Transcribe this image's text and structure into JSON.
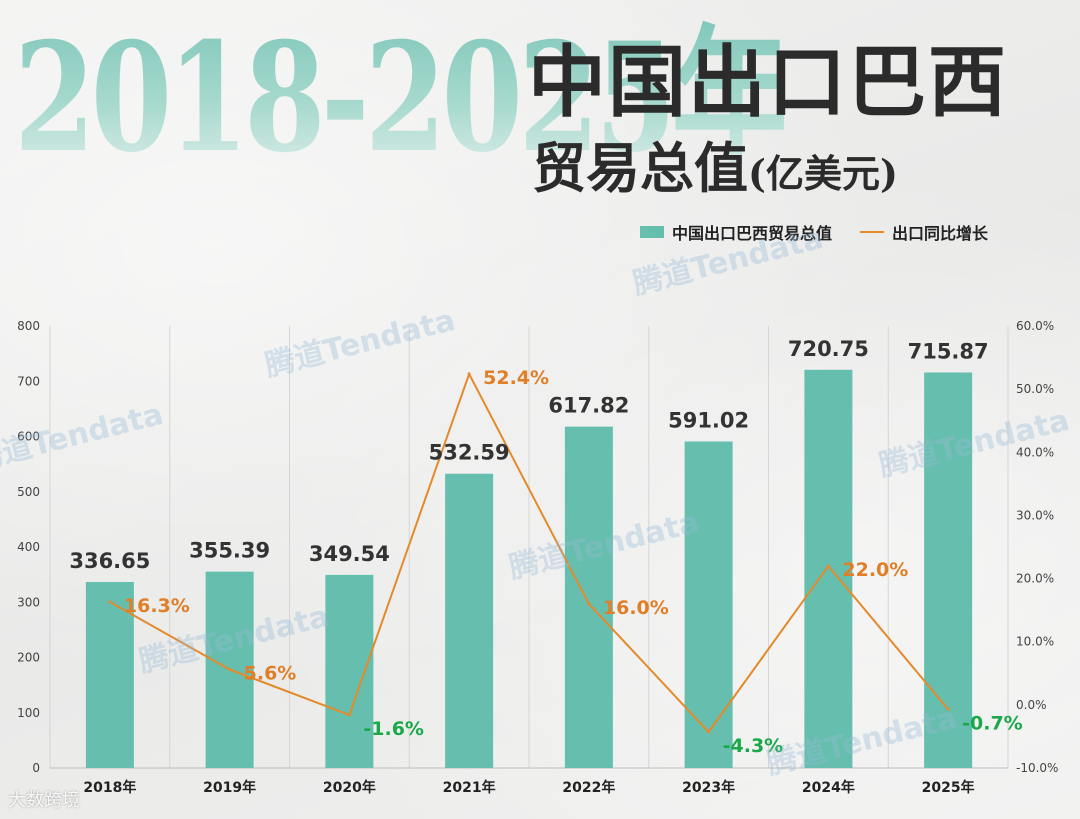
{
  "header": {
    "big_year": "2018-2025年",
    "title_line1": "中国出口巴西",
    "title_line2": "贸易总值",
    "title_unit": "(亿美元)"
  },
  "legend": {
    "bar_label": "中国出口巴西贸易总值",
    "line_label": "出口同比增长"
  },
  "watermark_text": "腾道Tendata",
  "source_label": "大数跨境",
  "colors": {
    "bar": "#66bfae",
    "line": "#e38a2b",
    "label_dark": "#333333",
    "label_pos": "#e07f27",
    "label_neg": "#1aa84a",
    "grid": "#d6d6d6"
  },
  "chart_data": {
    "type": "bar",
    "title": "2018-2025年中国出口巴西贸易总值(亿美元)",
    "categories": [
      "2018年",
      "2019年",
      "2020年",
      "2021年",
      "2022年",
      "2023年",
      "2024年",
      "2025年"
    ],
    "series": [
      {
        "name": "中国出口巴西贸易总值",
        "type": "bar",
        "axis": "left",
        "values": [
          336.65,
          355.39,
          349.54,
          532.59,
          617.82,
          591.02,
          720.75,
          715.87
        ],
        "labels": [
          "336.65",
          "355.39",
          "349.54",
          "532.59",
          "617.82",
          "591.02",
          "720.75",
          "715.87"
        ]
      },
      {
        "name": "出口同比增长",
        "type": "line",
        "axis": "right",
        "values": [
          16.3,
          5.6,
          -1.6,
          52.4,
          16.0,
          -4.3,
          22.0,
          -0.7
        ],
        "labels": [
          "16.3%",
          "5.6%",
          "-1.6%",
          "52.4%",
          "16.0%",
          "-4.3%",
          "22.0%",
          "-0.7%"
        ]
      }
    ],
    "left_axis": {
      "ylim": [
        0,
        800
      ],
      "ticks": [
        0,
        100,
        200,
        300,
        400,
        500,
        600,
        700,
        800
      ],
      "tick_labels": [
        "0",
        "100",
        "200",
        "300",
        "400",
        "500",
        "600",
        "700",
        "800"
      ]
    },
    "right_axis": {
      "ylim": [
        -10,
        60
      ],
      "ticks": [
        -10,
        0,
        10,
        20,
        30,
        40,
        50,
        60
      ],
      "tick_labels": [
        "-10.0%",
        "0.0%",
        "10.0%",
        "20.0%",
        "30.0%",
        "40.0%",
        "50.0%",
        "60.0%"
      ]
    },
    "grid": "vertical",
    "legend_position": "top-right"
  }
}
